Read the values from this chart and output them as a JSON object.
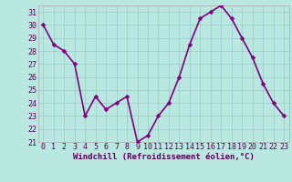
{
  "x": [
    0,
    1,
    2,
    3,
    4,
    5,
    6,
    7,
    8,
    9,
    10,
    11,
    12,
    13,
    14,
    15,
    16,
    17,
    18,
    19,
    20,
    21,
    22,
    23
  ],
  "y": [
    30,
    28.5,
    28,
    27,
    23,
    24.5,
    23.5,
    24,
    24.5,
    21,
    21.5,
    23,
    24,
    26,
    28.5,
    30.5,
    31,
    31.5,
    30.5,
    29,
    27.5,
    25.5,
    24,
    23
  ],
  "line_color": "#800080",
  "marker": "D",
  "marker_size": 2.5,
  "bg_color": "#b8e8e0",
  "grid_color": "#9ecece",
  "xlabel": "Windchill (Refroidissement éolien,°C)",
  "ylabel": "",
  "xlim": [
    -0.5,
    23.5
  ],
  "ylim": [
    21,
    31.5
  ],
  "yticks": [
    21,
    22,
    23,
    24,
    25,
    26,
    27,
    28,
    29,
    30,
    31
  ],
  "xticks": [
    0,
    1,
    2,
    3,
    4,
    5,
    6,
    7,
    8,
    9,
    10,
    11,
    12,
    13,
    14,
    15,
    16,
    17,
    18,
    19,
    20,
    21,
    22,
    23
  ],
  "xlabel_fontsize": 6.5,
  "tick_fontsize": 6,
  "line_width": 1.2
}
